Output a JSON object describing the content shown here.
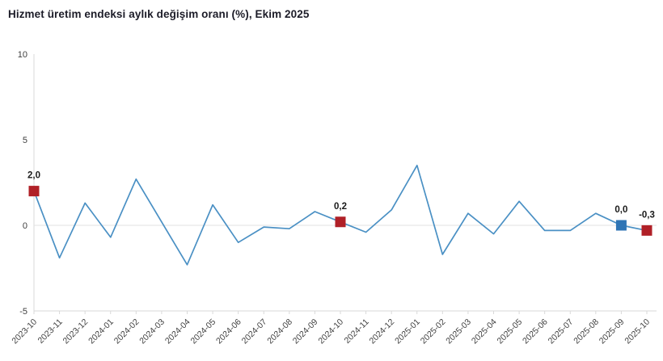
{
  "title": "Hizmet üretim endeksi aylık değişim oranı (%), Ekim 2025",
  "chart_data": {
    "type": "line",
    "categories": [
      "2023-10",
      "2023-11",
      "2023-12",
      "2024-01",
      "2024-02",
      "2024-03",
      "2024-04",
      "2024-05",
      "2024-06",
      "2024-07",
      "2024-08",
      "2024-09",
      "2024-10",
      "2024-11",
      "2024-12",
      "2025-01",
      "2025-02",
      "2025-03",
      "2025-04",
      "2025-05",
      "2025-06",
      "2025-07",
      "2025-08",
      "2025-09",
      "2025-10"
    ],
    "values": [
      2.0,
      -1.9,
      1.3,
      -0.7,
      2.7,
      0.2,
      -2.3,
      1.2,
      -1.0,
      -0.1,
      -0.2,
      0.8,
      0.2,
      -0.4,
      0.9,
      3.5,
      -1.7,
      0.7,
      -0.5,
      1.4,
      -0.3,
      -0.3,
      0.7,
      0.0,
      -0.3
    ],
    "ylim": [
      -5,
      10
    ],
    "ytick_labels": [
      "10",
      "5",
      "0",
      "-5"
    ],
    "yticks": [
      10,
      5,
      0,
      -5
    ],
    "grid": "zero-line-only",
    "legend": "none",
    "xlabel": "",
    "ylabel": "",
    "line_color": "#4a90c4",
    "axis_color": "#d9d9d9",
    "zero_line_color": "#e2e2e2",
    "tick_label_color": "#3f3f3f",
    "data_label_color": "#1a1a1a",
    "markers": [
      {
        "category": "2023-10",
        "value": 2.0,
        "label": "2,0",
        "color": "#b02027",
        "shape": "square"
      },
      {
        "category": "2024-10",
        "value": 0.2,
        "label": "0,2",
        "color": "#b02027",
        "shape": "square"
      },
      {
        "category": "2025-09",
        "value": 0.0,
        "label": "0,0",
        "color": "#2f75b5",
        "shape": "square"
      },
      {
        "category": "2025-10",
        "value": -0.3,
        "label": "-0,3",
        "color": "#b02027",
        "shape": "square"
      }
    ]
  }
}
